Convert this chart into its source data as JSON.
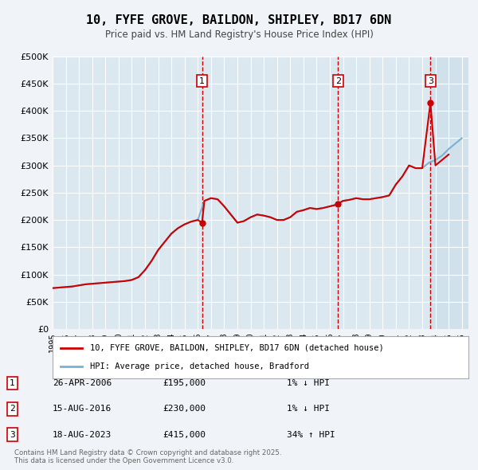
{
  "title": "10, FYFE GROVE, BAILDON, SHIPLEY, BD17 6DN",
  "subtitle": "Price paid vs. HM Land Registry's House Price Index (HPI)",
  "xlabel": "",
  "ylabel": "",
  "ylim": [
    0,
    500000
  ],
  "yticks": [
    0,
    50000,
    100000,
    150000,
    200000,
    250000,
    300000,
    350000,
    400000,
    450000,
    500000
  ],
  "ytick_labels": [
    "£0",
    "£50K",
    "£100K",
    "£150K",
    "£200K",
    "£250K",
    "£300K",
    "£350K",
    "£400K",
    "£450K",
    "£500K"
  ],
  "xlim_start": 1995.0,
  "xlim_end": 2026.5,
  "background_color": "#f0f4f8",
  "plot_bg_color": "#dce8f0",
  "grid_color": "#ffffff",
  "red_line_color": "#cc0000",
  "blue_line_color": "#7ab0d4",
  "vline_color": "#cc0000",
  "shade_color": "#c8dcea",
  "transactions": [
    {
      "num": 1,
      "date_label": "26-APR-2006",
      "price": 195000,
      "x": 2006.32,
      "hpi_pct": "1%",
      "hpi_dir": "↓"
    },
    {
      "num": 2,
      "date_label": "15-AUG-2016",
      "price": 230000,
      "x": 2016.62,
      "hpi_pct": "1%",
      "hpi_dir": "↓"
    },
    {
      "num": 3,
      "date_label": "18-AUG-2023",
      "price": 415000,
      "x": 2023.62,
      "hpi_pct": "34%",
      "hpi_dir": "↑"
    }
  ],
  "legend_entries": [
    "10, FYFE GROVE, BAILDON, SHIPLEY, BD17 6DN (detached house)",
    "HPI: Average price, detached house, Bradford"
  ],
  "footnote": "Contains HM Land Registry data © Crown copyright and database right 2025.\nThis data is licensed under the Open Government Licence v3.0.",
  "hpi_red_data": {
    "x": [
      1995.0,
      1995.5,
      1996.0,
      1996.5,
      1997.0,
      1997.5,
      1998.0,
      1998.5,
      1999.0,
      1999.5,
      2000.0,
      2000.5,
      2001.0,
      2001.5,
      2002.0,
      2002.5,
      2003.0,
      2003.5,
      2004.0,
      2004.5,
      2005.0,
      2005.5,
      2006.0,
      2006.32,
      2006.5,
      2007.0,
      2007.5,
      2008.0,
      2008.5,
      2009.0,
      2009.5,
      2010.0,
      2010.5,
      2011.0,
      2011.5,
      2012.0,
      2012.5,
      2013.0,
      2013.5,
      2014.0,
      2014.5,
      2015.0,
      2015.5,
      2016.0,
      2016.5,
      2016.62,
      2017.0,
      2017.5,
      2018.0,
      2018.5,
      2019.0,
      2019.5,
      2020.0,
      2020.5,
      2021.0,
      2021.5,
      2022.0,
      2022.5,
      2023.0,
      2023.62,
      2024.0,
      2024.5,
      2025.0
    ],
    "y": [
      75000,
      76000,
      77000,
      78000,
      80000,
      82000,
      83000,
      84000,
      85000,
      86000,
      87000,
      88000,
      90000,
      95000,
      108000,
      125000,
      145000,
      160000,
      175000,
      185000,
      192000,
      197000,
      200000,
      195000,
      235000,
      240000,
      238000,
      225000,
      210000,
      195000,
      198000,
      205000,
      210000,
      208000,
      205000,
      200000,
      200000,
      205000,
      215000,
      218000,
      222000,
      220000,
      222000,
      225000,
      228000,
      230000,
      235000,
      237000,
      240000,
      238000,
      238000,
      240000,
      242000,
      245000,
      265000,
      280000,
      300000,
      295000,
      295000,
      415000,
      300000,
      310000,
      320000
    ]
  },
  "hpi_blue_data": {
    "x": [
      1995.0,
      1995.5,
      1996.0,
      1996.5,
      1997.0,
      1997.5,
      1998.0,
      1998.5,
      1999.0,
      1999.5,
      2000.0,
      2000.5,
      2001.0,
      2001.5,
      2002.0,
      2002.5,
      2003.0,
      2003.5,
      2004.0,
      2004.5,
      2005.0,
      2005.5,
      2006.0,
      2006.5,
      2007.0,
      2007.5,
      2008.0,
      2008.5,
      2009.0,
      2009.5,
      2010.0,
      2010.5,
      2011.0,
      2011.5,
      2012.0,
      2012.5,
      2013.0,
      2013.5,
      2014.0,
      2014.5,
      2015.0,
      2015.5,
      2016.0,
      2016.5,
      2017.0,
      2017.5,
      2018.0,
      2018.5,
      2019.0,
      2019.5,
      2020.0,
      2020.5,
      2021.0,
      2021.5,
      2022.0,
      2022.5,
      2023.0,
      2023.5,
      2024.0,
      2024.5,
      2025.0,
      2025.5,
      2026.0
    ],
    "y": [
      75000,
      76000,
      77000,
      78000,
      80000,
      82000,
      83000,
      84000,
      85000,
      86000,
      87000,
      88000,
      90000,
      95000,
      108000,
      125000,
      145000,
      160000,
      175000,
      185000,
      192000,
      197000,
      200000,
      235000,
      240000,
      238000,
      225000,
      210000,
      195000,
      198000,
      205000,
      210000,
      208000,
      205000,
      200000,
      200000,
      205000,
      215000,
      218000,
      222000,
      220000,
      222000,
      225000,
      228000,
      235000,
      237000,
      240000,
      238000,
      238000,
      240000,
      242000,
      245000,
      265000,
      280000,
      300000,
      295000,
      295000,
      305000,
      310000,
      318000,
      330000,
      340000,
      350000
    ]
  }
}
